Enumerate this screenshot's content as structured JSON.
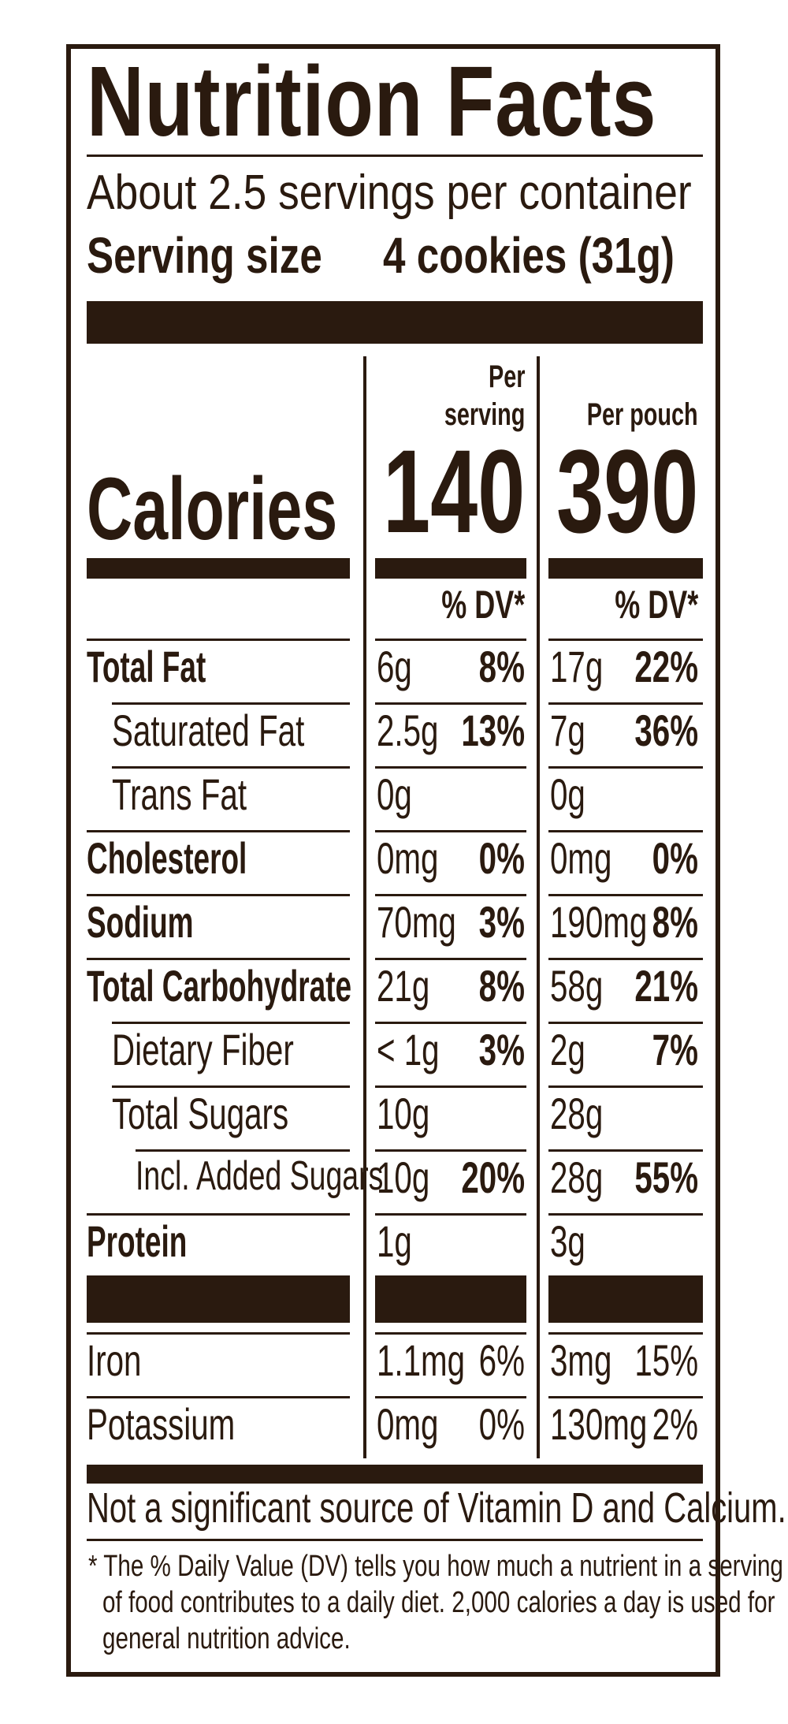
{
  "title": "Nutrition Facts",
  "servings_per_container": "About 2.5 servings per container",
  "serving_size_label": "Serving size",
  "serving_size_value": "4 cookies (31g)",
  "columns": {
    "per_serving_line1": "Per",
    "per_serving_line2": "serving",
    "per_pouch": "Per pouch"
  },
  "calories": {
    "label": "Calories",
    "per_serving": "140",
    "per_pouch": "390"
  },
  "dv_header": "% DV*",
  "nutrients": [
    {
      "name": "Total Fat",
      "serving_amount": "6g",
      "serving_dv": "8%",
      "pouch_amount": "17g",
      "pouch_dv": "22%"
    },
    {
      "name": "Saturated Fat",
      "serving_amount": "2.5g",
      "serving_dv": "13%",
      "pouch_amount": "7g",
      "pouch_dv": "36%"
    },
    {
      "name": "Trans Fat",
      "serving_amount": "0g",
      "serving_dv": "",
      "pouch_amount": "0g",
      "pouch_dv": ""
    },
    {
      "name": "Cholesterol",
      "serving_amount": "0mg",
      "serving_dv": "0%",
      "pouch_amount": "0mg",
      "pouch_dv": "0%"
    },
    {
      "name": "Sodium",
      "serving_amount": "70mg",
      "serving_dv": "3%",
      "pouch_amount": "190mg",
      "pouch_dv": "8%"
    },
    {
      "name": "Total Carbohydrate",
      "serving_amount": "21g",
      "serving_dv": "8%",
      "pouch_amount": "58g",
      "pouch_dv": "21%"
    },
    {
      "name": "Dietary Fiber",
      "serving_amount": "< 1g",
      "serving_dv": "3%",
      "pouch_amount": "2g",
      "pouch_dv": "7%"
    },
    {
      "name": "Total Sugars",
      "serving_amount": "10g",
      "serving_dv": "",
      "pouch_amount": "28g",
      "pouch_dv": ""
    },
    {
      "name": "Incl. Added Sugars",
      "serving_amount": "10g",
      "serving_dv": "20%",
      "pouch_amount": "28g",
      "pouch_dv": "55%"
    },
    {
      "name": "Protein",
      "serving_amount": "1g",
      "serving_dv": "",
      "pouch_amount": "3g",
      "pouch_dv": ""
    }
  ],
  "minerals": [
    {
      "name": "Iron",
      "serving_amount": "1.1mg",
      "serving_dv": "6%",
      "pouch_amount": "3mg",
      "pouch_dv": "15%"
    },
    {
      "name": "Potassium",
      "serving_amount": "0mg",
      "serving_dv": "0%",
      "pouch_amount": "130mg",
      "pouch_dv": "2%"
    }
  ],
  "not_significant": "Not a significant source of Vitamin D and Calcium.",
  "footnote": [
    "* The % Daily Value (DV) tells you how much a nutrient in a serving",
    "of food contributes to a daily diet. 2,000 calories a day is used for",
    "general nutrition advice."
  ],
  "colors": {
    "ink": "#2a1a0f",
    "background": "#ffffff"
  }
}
